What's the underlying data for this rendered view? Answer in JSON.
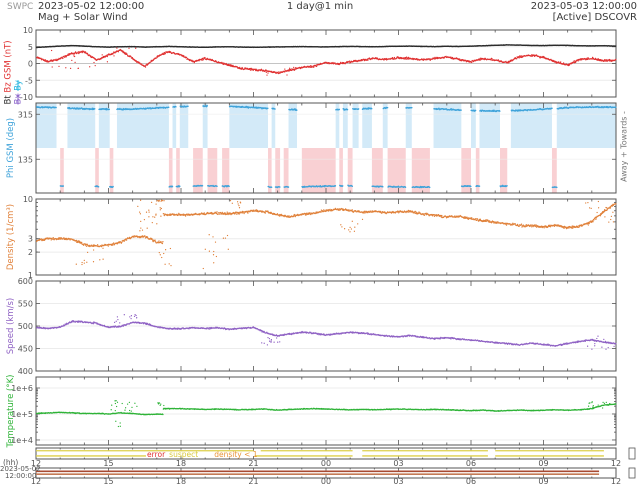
{
  "header": {
    "agency": "SWPC",
    "start": "2023-05-02 12:00:00",
    "title": "Mag + Solar Wind",
    "range": "1 day@1 min",
    "end": "2023-05-03 12:00:00",
    "status": "[Active] DSCOVR"
  },
  "footer": {
    "hh_label": "(hh)",
    "date_label": "2023-05-02",
    "time_label": "12:00:00",
    "tick_labels": [
      "12",
      "15",
      "18",
      "21",
      "00",
      "03",
      "06",
      "09",
      "12"
    ]
  },
  "flag_legend": {
    "error": "error",
    "suspect": "suspect",
    "density": "density < 1"
  },
  "phi_annotation": "Away +      Towards -",
  "colors": {
    "bt": "#2b2b2b",
    "bz": "#e03131",
    "bx": "#8a63c9",
    "by": "#2ab6e0",
    "phi": "#3fa3da",
    "toward_fill": "#d3eaf8",
    "away_fill": "#f9d0d3",
    "density": "#e0813a",
    "speed": "#8f62c4",
    "temp": "#2eb337",
    "suspect": "#ddcf4a",
    "error": "#e03131",
    "density_flag": "#e8953a",
    "status_line1": "#a84a32",
    "status_line2": "#c47a55",
    "grid": "#ececec",
    "zero": "#c4c4c4",
    "border": "#555555",
    "text": "#444444",
    "muted": "#999999"
  },
  "chart_data": [
    {
      "id": "mag",
      "type": "scatter",
      "ylabel": [
        {
          "text": "Bt",
          "color": "#2b2b2b",
          "col": 1
        },
        {
          "text": "Bz GSM (nT)",
          "color": "#e03131",
          "col": 1
        },
        {
          "text": "Bx",
          "color": "#8a63c9",
          "col": 2,
          "struck": true
        },
        {
          "text": "By",
          "color": "#2ab6e0",
          "col": 2,
          "struck": true
        }
      ],
      "ylim": [
        -10,
        10
      ],
      "yticks": [
        10,
        5,
        0,
        -5,
        -10
      ],
      "x_start": 0,
      "x_step": 0.5,
      "series": [
        {
          "name": "Bt",
          "color": "#2b2b2b",
          "jitter": 0.07,
          "dot": 1.5,
          "values": [
            4.8,
            5.0,
            5.2,
            5.35,
            5.2,
            5.0,
            4.9,
            5.0,
            5.05,
            4.9,
            5.0,
            5.1,
            5.0,
            4.9,
            4.85,
            4.95,
            5.0,
            4.9,
            4.85,
            4.9,
            4.95,
            5.0,
            5.05,
            5.0,
            4.95,
            5.05,
            5.1,
            5.05,
            5.0,
            5.1,
            5.15,
            5.2,
            5.1,
            5.05,
            5.15,
            5.1,
            5.2,
            5.3,
            5.45,
            5.55,
            5.5,
            5.4,
            5.35,
            5.45,
            5.4,
            5.3,
            5.25,
            5.3,
            5.2
          ]
        },
        {
          "name": "Bz",
          "color": "#e03131",
          "jitter": 0.4,
          "dot": 1.4,
          "values": [
            2.0,
            0.5,
            1.5,
            3.0,
            3.5,
            1.0,
            2.5,
            4.0,
            1.5,
            -1.0,
            2.0,
            3.5,
            2.5,
            0.5,
            1.5,
            0.5,
            -0.5,
            -1.5,
            -1.8,
            -2.2,
            -2.8,
            -2.0,
            -1.2,
            -0.8,
            0.3,
            -0.2,
            0.5,
            1.0,
            1.5,
            1.2,
            1.8,
            1.4,
            1.0,
            1.5,
            2.0,
            1.2,
            0.5,
            1.5,
            1.0,
            0.3,
            2.0,
            2.5,
            1.8,
            0.5,
            -0.5,
            1.2,
            1.5,
            0.8,
            1.0
          ],
          "outliers": [
            {
              "from": 0.2,
              "to": 4.6,
              "min": -1.5,
              "max": 4.6,
              "count": 26
            },
            {
              "from": 8.5,
              "to": 10.8,
              "min": -3.6,
              "max": -1.0,
              "count": 12
            }
          ]
        }
      ]
    },
    {
      "id": "phi",
      "type": "sector-scatter",
      "ylabel": "Phi GSM (deg)",
      "ylabel_color": "#3fa3da",
      "ylim": [
        0,
        360
      ],
      "yticks": [
        315,
        135
      ],
      "toward_level": 338,
      "away_level": 26,
      "dot_color": "#3fa3da",
      "toward_fill": "#d3eaf8",
      "away_fill": "#f9d0d3",
      "sectors": [
        [
          0,
          0.85,
          "T"
        ],
        [
          0.85,
          1.0,
          "N"
        ],
        [
          1.0,
          1.15,
          "A"
        ],
        [
          1.15,
          1.3,
          "N"
        ],
        [
          1.3,
          2.45,
          "T"
        ],
        [
          2.45,
          2.6,
          "A"
        ],
        [
          2.6,
          3.05,
          "T"
        ],
        [
          3.05,
          3.2,
          "A"
        ],
        [
          3.2,
          3.35,
          "N"
        ],
        [
          3.35,
          5.5,
          "T"
        ],
        [
          5.5,
          5.65,
          "A"
        ],
        [
          5.65,
          5.8,
          "T"
        ],
        [
          5.8,
          5.95,
          "A"
        ],
        [
          5.95,
          6.3,
          "T"
        ],
        [
          6.3,
          6.5,
          "N"
        ],
        [
          6.5,
          6.9,
          "A"
        ],
        [
          6.9,
          7.1,
          "T"
        ],
        [
          7.1,
          7.5,
          "A"
        ],
        [
          7.5,
          7.7,
          "N"
        ],
        [
          7.7,
          8.0,
          "A"
        ],
        [
          8.0,
          9.6,
          "T"
        ],
        [
          9.6,
          9.75,
          "A"
        ],
        [
          9.75,
          9.9,
          "T"
        ],
        [
          9.9,
          10.1,
          "A"
        ],
        [
          10.1,
          10.25,
          "N"
        ],
        [
          10.25,
          10.45,
          "A"
        ],
        [
          10.45,
          10.8,
          "T"
        ],
        [
          10.8,
          11.0,
          "N"
        ],
        [
          11.0,
          12.4,
          "A"
        ],
        [
          12.4,
          12.55,
          "T"
        ],
        [
          12.55,
          12.7,
          "A"
        ],
        [
          12.7,
          12.9,
          "T"
        ],
        [
          12.9,
          13.1,
          "A"
        ],
        [
          13.1,
          13.35,
          "T"
        ],
        [
          13.35,
          13.5,
          "N"
        ],
        [
          13.5,
          13.9,
          "T"
        ],
        [
          13.9,
          14.35,
          "A"
        ],
        [
          14.35,
          14.55,
          "T"
        ],
        [
          14.55,
          15.3,
          "A"
        ],
        [
          15.3,
          15.55,
          "T"
        ],
        [
          15.55,
          16.3,
          "A"
        ],
        [
          16.3,
          16.45,
          "N"
        ],
        [
          16.45,
          17.6,
          "T"
        ],
        [
          17.6,
          18.0,
          "A"
        ],
        [
          18.0,
          18.2,
          "T"
        ],
        [
          18.2,
          18.35,
          "A"
        ],
        [
          18.35,
          19.2,
          "T"
        ],
        [
          19.2,
          19.5,
          "A"
        ],
        [
          19.5,
          19.65,
          "N"
        ],
        [
          19.65,
          21.35,
          "T"
        ],
        [
          21.35,
          21.55,
          "A"
        ],
        [
          21.55,
          24,
          "T"
        ]
      ]
    },
    {
      "id": "density",
      "type": "scatter",
      "scale": "log",
      "snap_ratio": 1.7,
      "ylabel": "Density (1/cm³)",
      "ylabel_color": "#e0813a",
      "ylim": [
        1,
        10
      ],
      "yticks": [
        10,
        3,
        2,
        1
      ],
      "x_start": 0,
      "x_step": 0.5,
      "series": [
        {
          "name": "Density",
          "color": "#e0813a",
          "jitter": 0.05,
          "dot": 1.4,
          "values": [
            2.8,
            3.0,
            3.0,
            2.95,
            2.5,
            2.4,
            2.5,
            2.7,
            3.2,
            3.2,
            2.7,
            6.2,
            6.2,
            6.3,
            6.4,
            6.5,
            6.4,
            6.6,
            7.0,
            6.8,
            6.2,
            5.8,
            6.3,
            6.5,
            7.0,
            7.4,
            7.0,
            6.7,
            6.9,
            6.6,
            6.8,
            6.8,
            6.4,
            6.1,
            5.8,
            5.9,
            5.5,
            5.2,
            4.9,
            4.7,
            4.5,
            4.4,
            4.3,
            4.5,
            4.2,
            4.4,
            5.0,
            6.8,
            8.8
          ],
          "outliers": [
            {
              "from": 1.5,
              "to": 3.2,
              "min": 1.35,
              "max": 2.3,
              "count": 12
            },
            {
              "from": 4.2,
              "to": 5.2,
              "min": 3.4,
              "max": 9.8,
              "count": 26
            },
            {
              "from": 5.0,
              "to": 5.3,
              "min": 9.2,
              "max": 10.0,
              "count": 8
            },
            {
              "from": 5.1,
              "to": 5.6,
              "min": 1.05,
              "max": 2.4,
              "count": 9
            },
            {
              "from": 6.8,
              "to": 8.0,
              "min": 1.1,
              "max": 5.0,
              "count": 14
            },
            {
              "from": 8.0,
              "to": 8.6,
              "min": 7.4,
              "max": 9.6,
              "count": 8
            },
            {
              "from": 12.6,
              "to": 13.6,
              "min": 3.6,
              "max": 5.4,
              "count": 12
            },
            {
              "from": 22.6,
              "to": 24.0,
              "min": 4.5,
              "max": 9.5,
              "count": 20
            }
          ]
        }
      ]
    },
    {
      "id": "speed",
      "type": "scatter",
      "ylabel": "Speed (km/s)",
      "ylabel_color": "#8f62c4",
      "ylim": [
        400,
        600
      ],
      "yticks": [
        600,
        550,
        500,
        450,
        400
      ],
      "x_start": 0,
      "x_step": 0.5,
      "series": [
        {
          "name": "Speed",
          "color": "#8f62c4",
          "jitter": 2.2,
          "dot": 1.4,
          "values": [
            497,
            494,
            498,
            510,
            509,
            506,
            497,
            499,
            508,
            506,
            498,
            494,
            494,
            496,
            494,
            496,
            493,
            495,
            497,
            485,
            478,
            482,
            486,
            484,
            480,
            483,
            486,
            484,
            481,
            478,
            476,
            479,
            475,
            472,
            474,
            471,
            469,
            466,
            463,
            461,
            458,
            462,
            459,
            456,
            461,
            466,
            469,
            464,
            461
          ],
          "outliers": [
            {
              "from": 3.2,
              "to": 4.3,
              "min": 505,
              "max": 526,
              "count": 14
            },
            {
              "from": 9.2,
              "to": 10.3,
              "min": 452,
              "max": 478,
              "count": 14
            },
            {
              "from": 22.8,
              "to": 24.0,
              "min": 448,
              "max": 478,
              "count": 12
            }
          ]
        }
      ]
    },
    {
      "id": "temp",
      "type": "scatter",
      "scale": "log",
      "snap_ratio": 1.5,
      "ylabel": "Temperature (°K)",
      "ylabel_color": "#2eb337",
      "ylim": [
        6400,
        2650000
      ],
      "yticks": [
        1000000,
        100000,
        10000
      ],
      "ytick_labels": [
        "1e+6",
        "1e+5",
        "1e+4"
      ],
      "x_start": 0,
      "x_step": 0.5,
      "series": [
        {
          "name": "Temperature",
          "color": "#2eb337",
          "jitter": 0.045,
          "dot": 1.4,
          "values": [
            105000,
            110000,
            115000,
            110000,
            105000,
            105000,
            100000,
            110000,
            105000,
            95000,
            98000,
            160000,
            160000,
            155000,
            150000,
            155000,
            150000,
            145000,
            150000,
            155000,
            140000,
            150000,
            155000,
            160000,
            155000,
            150000,
            145000,
            150000,
            145000,
            150000,
            155000,
            150000,
            145000,
            150000,
            145000,
            140000,
            135000,
            140000,
            130000,
            135000,
            140000,
            135000,
            140000,
            145000,
            140000,
            145000,
            160000,
            220000,
            240000
          ],
          "outliers": [
            {
              "from": 3.0,
              "to": 4.2,
              "min": 120000,
              "max": 330000,
              "count": 18
            },
            {
              "from": 3.2,
              "to": 3.7,
              "min": 30000,
              "max": 60000,
              "count": 4
            },
            {
              "from": 5.0,
              "to": 5.35,
              "min": 210000,
              "max": 280000,
              "count": 8
            },
            {
              "from": 22.8,
              "to": 24.0,
              "min": 170000,
              "max": 300000,
              "count": 16
            }
          ]
        }
      ]
    },
    {
      "id": "flags",
      "type": "flags",
      "color": "#ddcf4a",
      "rows": [
        {
          "level": 0.25,
          "segments": [
            [
              0,
              9.0
            ],
            [
              9.3,
              13.1
            ],
            [
              13.5,
              18.7
            ],
            [
              19.0,
              23.5
            ]
          ]
        },
        {
          "level": 0.72,
          "segments": [
            [
              0,
              4.55
            ],
            [
              9.05,
              13.1
            ],
            [
              13.5,
              18.7
            ],
            [
              19.0,
              23.5
            ]
          ]
        }
      ]
    },
    {
      "id": "status",
      "type": "status",
      "lines": [
        {
          "level": 0.33,
          "color": "#a84a32",
          "segments": [
            [
              0,
              23.3
            ]
          ]
        },
        {
          "level": 0.62,
          "color": "#c47a55",
          "segments": [
            [
              0,
              23.3
            ]
          ]
        }
      ]
    }
  ]
}
